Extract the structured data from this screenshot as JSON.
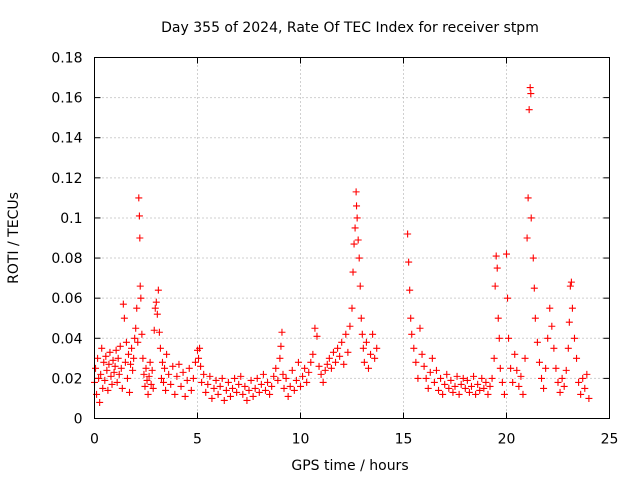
{
  "chart_data": {
    "type": "scatter",
    "title": "Day 355 of 2024, Rate Of TEC Index for receiver stpm",
    "xlabel": "GPS time / hours",
    "ylabel": "ROTI / TECUs",
    "xlim": [
      0,
      25
    ],
    "ylim": [
      0,
      0.18
    ],
    "xticks": [
      0,
      5,
      10,
      15,
      20,
      25
    ],
    "xtick_labels": [
      "0",
      "5",
      "10",
      "15",
      "20",
      "25"
    ],
    "yticks": [
      0,
      0.02,
      0.04,
      0.06,
      0.08,
      0.1,
      0.12,
      0.14,
      0.16,
      0.18
    ],
    "ytick_labels": [
      "0",
      "0.02",
      "0.04",
      "0.06",
      "0.08",
      "0.1",
      "0.12",
      "0.14",
      "0.16",
      "0.18"
    ],
    "grid": true,
    "marker": "+",
    "color": "#ff0000",
    "series": [
      {
        "name": "ROTI",
        "points": [
          [
            0.0,
            0.018
          ],
          [
            0.05,
            0.025
          ],
          [
            0.1,
            0.012
          ],
          [
            0.15,
            0.03
          ],
          [
            0.2,
            0.02
          ],
          [
            0.25,
            0.008
          ],
          [
            0.3,
            0.022
          ],
          [
            0.35,
            0.035
          ],
          [
            0.4,
            0.015
          ],
          [
            0.45,
            0.028
          ],
          [
            0.5,
            0.019
          ],
          [
            0.55,
            0.031
          ],
          [
            0.6,
            0.024
          ],
          [
            0.65,
            0.014
          ],
          [
            0.7,
            0.027
          ],
          [
            0.75,
            0.033
          ],
          [
            0.8,
            0.021
          ],
          [
            0.85,
            0.017
          ],
          [
            0.9,
            0.029
          ],
          [
            0.95,
            0.023
          ],
          [
            1.0,
            0.026
          ],
          [
            1.05,
            0.034
          ],
          [
            1.1,
            0.018
          ],
          [
            1.15,
            0.03
          ],
          [
            1.2,
            0.022
          ],
          [
            1.25,
            0.036
          ],
          [
            1.3,
            0.025
          ],
          [
            1.35,
            0.015
          ],
          [
            1.4,
            0.057
          ],
          [
            1.45,
            0.05
          ],
          [
            1.5,
            0.028
          ],
          [
            1.55,
            0.038
          ],
          [
            1.6,
            0.02
          ],
          [
            1.65,
            0.032
          ],
          [
            1.7,
            0.013
          ],
          [
            1.75,
            0.027
          ],
          [
            1.8,
            0.035
          ],
          [
            1.85,
            0.024
          ],
          [
            1.9,
            0.03
          ],
          [
            1.95,
            0.04
          ],
          [
            2.0,
            0.045
          ],
          [
            2.05,
            0.055
          ],
          [
            2.1,
            0.038
          ],
          [
            2.15,
            0.11
          ],
          [
            2.18,
            0.101
          ],
          [
            2.2,
            0.09
          ],
          [
            2.22,
            0.066
          ],
          [
            2.25,
            0.06
          ],
          [
            2.3,
            0.042
          ],
          [
            2.35,
            0.03
          ],
          [
            2.4,
            0.022
          ],
          [
            2.45,
            0.016
          ],
          [
            2.5,
            0.025
          ],
          [
            2.55,
            0.019
          ],
          [
            2.6,
            0.012
          ],
          [
            2.65,
            0.021
          ],
          [
            2.7,
            0.028
          ],
          [
            2.75,
            0.017
          ],
          [
            2.8,
            0.024
          ],
          [
            2.85,
            0.015
          ],
          [
            2.9,
            0.044
          ],
          [
            2.95,
            0.055
          ],
          [
            3.0,
            0.058
          ],
          [
            3.05,
            0.052
          ],
          [
            3.1,
            0.064
          ],
          [
            3.15,
            0.043
          ],
          [
            3.2,
            0.035
          ],
          [
            3.25,
            0.02
          ],
          [
            3.3,
            0.028
          ],
          [
            3.35,
            0.018
          ],
          [
            3.4,
            0.025
          ],
          [
            3.45,
            0.014
          ],
          [
            3.5,
            0.032
          ],
          [
            3.6,
            0.022
          ],
          [
            3.7,
            0.017
          ],
          [
            3.8,
            0.026
          ],
          [
            3.9,
            0.012
          ],
          [
            4.0,
            0.021
          ],
          [
            4.1,
            0.027
          ],
          [
            4.2,
            0.016
          ],
          [
            4.3,
            0.023
          ],
          [
            4.4,
            0.011
          ],
          [
            4.5,
            0.019
          ],
          [
            4.6,
            0.025
          ],
          [
            4.7,
            0.014
          ],
          [
            4.8,
            0.02
          ],
          [
            4.9,
            0.028
          ],
          [
            5.0,
            0.034
          ],
          [
            5.05,
            0.03
          ],
          [
            5.1,
            0.035
          ],
          [
            5.15,
            0.026
          ],
          [
            5.2,
            0.018
          ],
          [
            5.3,
            0.022
          ],
          [
            5.4,
            0.013
          ],
          [
            5.5,
            0.017
          ],
          [
            5.6,
            0.021
          ],
          [
            5.7,
            0.01
          ],
          [
            5.8,
            0.015
          ],
          [
            5.9,
            0.019
          ],
          [
            6.0,
            0.012
          ],
          [
            6.1,
            0.016
          ],
          [
            6.2,
            0.02
          ],
          [
            6.3,
            0.009
          ],
          [
            6.4,
            0.014
          ],
          [
            6.5,
            0.018
          ],
          [
            6.6,
            0.011
          ],
          [
            6.7,
            0.015
          ],
          [
            6.8,
            0.02
          ],
          [
            6.9,
            0.013
          ],
          [
            7.0,
            0.017
          ],
          [
            7.1,
            0.021
          ],
          [
            7.2,
            0.012
          ],
          [
            7.3,
            0.016
          ],
          [
            7.4,
            0.009
          ],
          [
            7.5,
            0.014
          ],
          [
            7.6,
            0.019
          ],
          [
            7.7,
            0.011
          ],
          [
            7.8,
            0.015
          ],
          [
            7.9,
            0.02
          ],
          [
            8.0,
            0.013
          ],
          [
            8.1,
            0.017
          ],
          [
            8.2,
            0.022
          ],
          [
            8.3,
            0.014
          ],
          [
            8.4,
            0.018
          ],
          [
            8.5,
            0.012
          ],
          [
            8.6,
            0.016
          ],
          [
            8.7,
            0.021
          ],
          [
            8.8,
            0.025
          ],
          [
            8.9,
            0.019
          ],
          [
            9.0,
            0.03
          ],
          [
            9.05,
            0.036
          ],
          [
            9.1,
            0.043
          ],
          [
            9.15,
            0.022
          ],
          [
            9.2,
            0.015
          ],
          [
            9.3,
            0.02
          ],
          [
            9.4,
            0.011
          ],
          [
            9.5,
            0.016
          ],
          [
            9.6,
            0.024
          ],
          [
            9.7,
            0.014
          ],
          [
            9.8,
            0.019
          ],
          [
            9.9,
            0.028
          ],
          [
            10.0,
            0.016
          ],
          [
            10.1,
            0.021
          ],
          [
            10.2,
            0.025
          ],
          [
            10.3,
            0.018
          ],
          [
            10.4,
            0.023
          ],
          [
            10.5,
            0.028
          ],
          [
            10.6,
            0.032
          ],
          [
            10.7,
            0.045
          ],
          [
            10.8,
            0.041
          ],
          [
            10.9,
            0.026
          ],
          [
            11.0,
            0.022
          ],
          [
            11.1,
            0.018
          ],
          [
            11.2,
            0.024
          ],
          [
            11.3,
            0.027
          ],
          [
            11.4,
            0.03
          ],
          [
            11.5,
            0.025
          ],
          [
            11.6,
            0.033
          ],
          [
            11.7,
            0.028
          ],
          [
            11.8,
            0.035
          ],
          [
            11.9,
            0.031
          ],
          [
            12.0,
            0.038
          ],
          [
            12.1,
            0.027
          ],
          [
            12.2,
            0.042
          ],
          [
            12.3,
            0.033
          ],
          [
            12.4,
            0.046
          ],
          [
            12.5,
            0.055
          ],
          [
            12.55,
            0.073
          ],
          [
            12.6,
            0.087
          ],
          [
            12.65,
            0.095
          ],
          [
            12.7,
            0.113
          ],
          [
            12.72,
            0.106
          ],
          [
            12.75,
            0.1
          ],
          [
            12.8,
            0.089
          ],
          [
            12.85,
            0.08
          ],
          [
            12.9,
            0.066
          ],
          [
            12.95,
            0.05
          ],
          [
            13.0,
            0.042
          ],
          [
            13.05,
            0.035
          ],
          [
            13.1,
            0.028
          ],
          [
            13.2,
            0.038
          ],
          [
            13.3,
            0.025
          ],
          [
            13.4,
            0.032
          ],
          [
            13.5,
            0.042
          ],
          [
            13.6,
            0.03
          ],
          [
            13.7,
            0.035
          ],
          [
            15.2,
            0.092
          ],
          [
            15.25,
            0.078
          ],
          [
            15.3,
            0.064
          ],
          [
            15.35,
            0.05
          ],
          [
            15.4,
            0.042
          ],
          [
            15.5,
            0.035
          ],
          [
            15.6,
            0.028
          ],
          [
            15.7,
            0.02
          ],
          [
            15.8,
            0.045
          ],
          [
            15.9,
            0.032
          ],
          [
            16.0,
            0.026
          ],
          [
            16.1,
            0.02
          ],
          [
            16.2,
            0.015
          ],
          [
            16.3,
            0.023
          ],
          [
            16.4,
            0.03
          ],
          [
            16.5,
            0.018
          ],
          [
            16.6,
            0.024
          ],
          [
            16.7,
            0.014
          ],
          [
            16.8,
            0.02
          ],
          [
            16.9,
            0.012
          ],
          [
            17.0,
            0.017
          ],
          [
            17.1,
            0.022
          ],
          [
            17.2,
            0.015
          ],
          [
            17.3,
            0.019
          ],
          [
            17.4,
            0.013
          ],
          [
            17.5,
            0.016
          ],
          [
            17.6,
            0.021
          ],
          [
            17.7,
            0.012
          ],
          [
            17.8,
            0.017
          ],
          [
            17.9,
            0.02
          ],
          [
            18.0,
            0.015
          ],
          [
            18.1,
            0.019
          ],
          [
            18.2,
            0.013
          ],
          [
            18.3,
            0.016
          ],
          [
            18.4,
            0.021
          ],
          [
            18.5,
            0.012
          ],
          [
            18.6,
            0.017
          ],
          [
            18.7,
            0.014
          ],
          [
            18.8,
            0.02
          ],
          [
            18.9,
            0.015
          ],
          [
            19.0,
            0.018
          ],
          [
            19.1,
            0.012
          ],
          [
            19.2,
            0.016
          ],
          [
            19.3,
            0.02
          ],
          [
            19.4,
            0.03
          ],
          [
            19.45,
            0.066
          ],
          [
            19.5,
            0.081
          ],
          [
            19.55,
            0.075
          ],
          [
            19.6,
            0.05
          ],
          [
            19.65,
            0.04
          ],
          [
            19.7,
            0.025
          ],
          [
            19.8,
            0.018
          ],
          [
            19.9,
            0.012
          ],
          [
            20.0,
            0.082
          ],
          [
            20.05,
            0.06
          ],
          [
            20.1,
            0.04
          ],
          [
            20.2,
            0.025
          ],
          [
            20.3,
            0.018
          ],
          [
            20.4,
            0.032
          ],
          [
            20.5,
            0.024
          ],
          [
            20.6,
            0.016
          ],
          [
            20.7,
            0.021
          ],
          [
            20.8,
            0.012
          ],
          [
            20.9,
            0.03
          ],
          [
            21.0,
            0.09
          ],
          [
            21.05,
            0.11
          ],
          [
            21.1,
            0.154
          ],
          [
            21.15,
            0.165
          ],
          [
            21.18,
            0.162
          ],
          [
            21.2,
            0.1
          ],
          [
            21.3,
            0.08
          ],
          [
            21.35,
            0.065
          ],
          [
            21.4,
            0.05
          ],
          [
            21.5,
            0.038
          ],
          [
            21.6,
            0.028
          ],
          [
            21.7,
            0.02
          ],
          [
            21.8,
            0.015
          ],
          [
            21.9,
            0.025
          ],
          [
            22.0,
            0.04
          ],
          [
            22.1,
            0.055
          ],
          [
            22.2,
            0.046
          ],
          [
            22.3,
            0.035
          ],
          [
            22.4,
            0.025
          ],
          [
            22.5,
            0.018
          ],
          [
            22.6,
            0.013
          ],
          [
            22.7,
            0.02
          ],
          [
            22.8,
            0.016
          ],
          [
            22.9,
            0.024
          ],
          [
            23.0,
            0.035
          ],
          [
            23.05,
            0.048
          ],
          [
            23.1,
            0.066
          ],
          [
            23.15,
            0.068
          ],
          [
            23.2,
            0.055
          ],
          [
            23.3,
            0.04
          ],
          [
            23.4,
            0.03
          ],
          [
            23.5,
            0.018
          ],
          [
            23.6,
            0.012
          ],
          [
            23.7,
            0.02
          ],
          [
            23.8,
            0.015
          ],
          [
            23.9,
            0.022
          ],
          [
            24.0,
            0.01
          ]
        ]
      }
    ]
  }
}
